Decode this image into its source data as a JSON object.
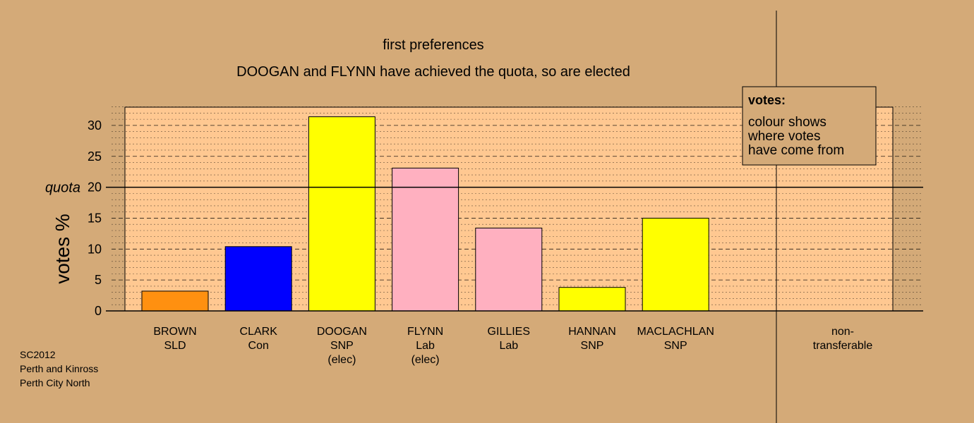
{
  "chart_data": {
    "type": "bar",
    "title": "first preferences",
    "subtitle": "DOOGAN and FLYNN have achieved the quota, so are elected",
    "ylabel": "votes %",
    "ylim": [
      0,
      33
    ],
    "yticks": [
      0,
      5,
      10,
      15,
      20,
      25,
      30
    ],
    "quota": {
      "label": "quota",
      "value": 20
    },
    "grid": "dashed every 5, dotted every 1",
    "categories": [
      {
        "name": "BROWN",
        "party": "SLD",
        "note": "",
        "value": 3.2,
        "color": "#ff9010"
      },
      {
        "name": "CLARK",
        "party": "Con",
        "note": "",
        "value": 10.4,
        "color": "#0000ff"
      },
      {
        "name": "DOOGAN",
        "party": "SNP",
        "note": "(elec)",
        "value": 31.4,
        "color": "#ffff00"
      },
      {
        "name": "FLYNN",
        "party": "Lab",
        "note": "(elec)",
        "value": 23.1,
        "color": "#ffb0c0"
      },
      {
        "name": "GILLIES",
        "party": "Lab",
        "note": "",
        "value": 13.4,
        "color": "#ffb0c0"
      },
      {
        "name": "HANNAN",
        "party": "SNP",
        "note": "",
        "value": 3.8,
        "color": "#ffff00"
      },
      {
        "name": "MACLACHLAN",
        "party": "SNP",
        "note": "",
        "value": 15.0,
        "color": "#ffff00"
      }
    ],
    "nontransferable": {
      "line1": "non-",
      "line2": "transferable",
      "value": 0
    },
    "legend": {
      "placement": "top-right",
      "title": "votes:",
      "lines": [
        "colour shows",
        "where votes",
        "have come from"
      ]
    }
  },
  "footer": {
    "lines": [
      "SC2012",
      "Perth and Kinross",
      "Perth City North"
    ]
  },
  "colors": {
    "background": "#d4aa78",
    "plot_background": "#ffc891",
    "legend_background": "#d4aa78"
  }
}
